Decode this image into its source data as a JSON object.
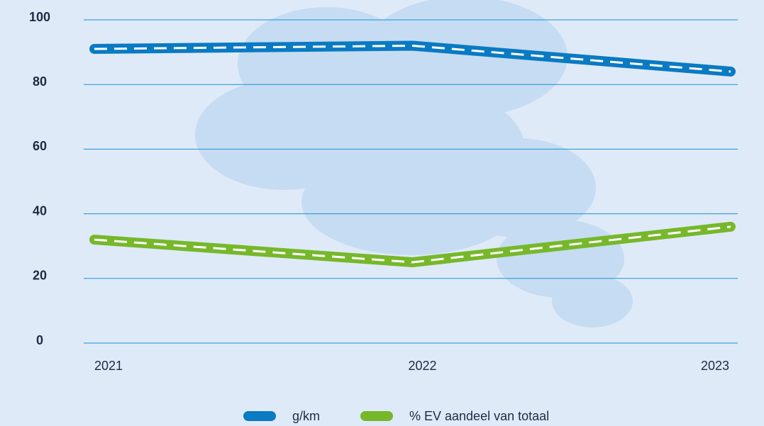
{
  "chart_data": {
    "type": "line",
    "categories": [
      "2021",
      "2022",
      "2023"
    ],
    "series": [
      {
        "name": "g/km",
        "color": "#0a7ac3",
        "values": [
          91,
          92,
          84
        ]
      },
      {
        "name": "% EV aandeel van totaal",
        "color": "#76b82a",
        "values": [
          32,
          25,
          36
        ]
      }
    ],
    "ylim": [
      0,
      100
    ],
    "yticks": [
      0,
      20,
      40,
      60,
      80,
      100
    ],
    "grid": true,
    "legend": "bottom"
  }
}
